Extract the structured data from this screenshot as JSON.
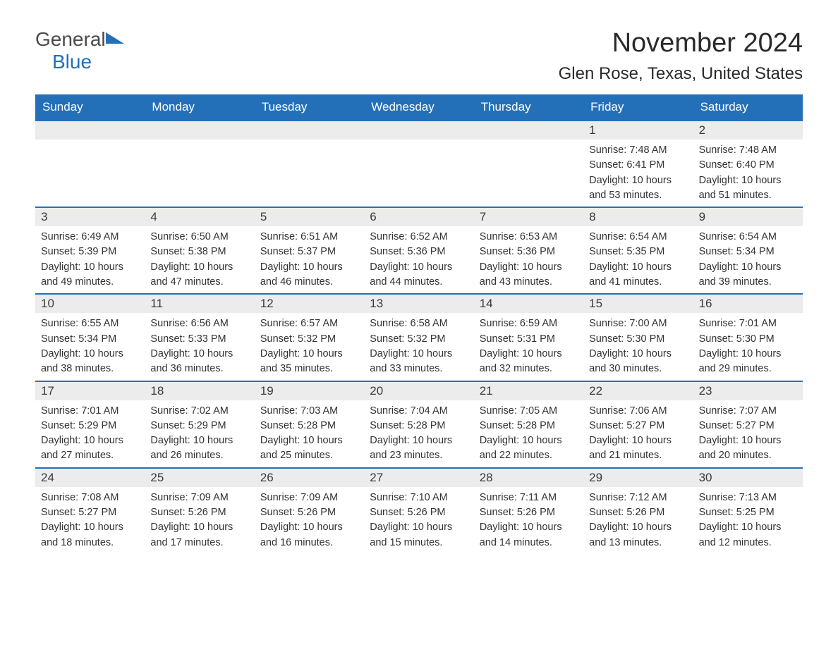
{
  "logo": {
    "text_general": "General",
    "text_blue": "Blue",
    "icon_color": "#2470b8"
  },
  "title": "November 2024",
  "location": "Glen Rose, Texas, United States",
  "colors": {
    "header_bg": "#2470b8",
    "header_text": "#ffffff",
    "day_number_bg": "#ececec",
    "text": "#333333",
    "border": "#2470b8"
  },
  "typography": {
    "title_size": 38,
    "location_size": 24,
    "header_size": 17,
    "day_number_size": 17,
    "content_size": 14.5
  },
  "day_headers": [
    "Sunday",
    "Monday",
    "Tuesday",
    "Wednesday",
    "Thursday",
    "Friday",
    "Saturday"
  ],
  "weeks": [
    [
      {
        "empty": true
      },
      {
        "empty": true
      },
      {
        "empty": true
      },
      {
        "empty": true
      },
      {
        "empty": true
      },
      {
        "day": "1",
        "sunrise": "Sunrise: 7:48 AM",
        "sunset": "Sunset: 6:41 PM",
        "daylight1": "Daylight: 10 hours",
        "daylight2": "and 53 minutes."
      },
      {
        "day": "2",
        "sunrise": "Sunrise: 7:48 AM",
        "sunset": "Sunset: 6:40 PM",
        "daylight1": "Daylight: 10 hours",
        "daylight2": "and 51 minutes."
      }
    ],
    [
      {
        "day": "3",
        "sunrise": "Sunrise: 6:49 AM",
        "sunset": "Sunset: 5:39 PM",
        "daylight1": "Daylight: 10 hours",
        "daylight2": "and 49 minutes."
      },
      {
        "day": "4",
        "sunrise": "Sunrise: 6:50 AM",
        "sunset": "Sunset: 5:38 PM",
        "daylight1": "Daylight: 10 hours",
        "daylight2": "and 47 minutes."
      },
      {
        "day": "5",
        "sunrise": "Sunrise: 6:51 AM",
        "sunset": "Sunset: 5:37 PM",
        "daylight1": "Daylight: 10 hours",
        "daylight2": "and 46 minutes."
      },
      {
        "day": "6",
        "sunrise": "Sunrise: 6:52 AM",
        "sunset": "Sunset: 5:36 PM",
        "daylight1": "Daylight: 10 hours",
        "daylight2": "and 44 minutes."
      },
      {
        "day": "7",
        "sunrise": "Sunrise: 6:53 AM",
        "sunset": "Sunset: 5:36 PM",
        "daylight1": "Daylight: 10 hours",
        "daylight2": "and 43 minutes."
      },
      {
        "day": "8",
        "sunrise": "Sunrise: 6:54 AM",
        "sunset": "Sunset: 5:35 PM",
        "daylight1": "Daylight: 10 hours",
        "daylight2": "and 41 minutes."
      },
      {
        "day": "9",
        "sunrise": "Sunrise: 6:54 AM",
        "sunset": "Sunset: 5:34 PM",
        "daylight1": "Daylight: 10 hours",
        "daylight2": "and 39 minutes."
      }
    ],
    [
      {
        "day": "10",
        "sunrise": "Sunrise: 6:55 AM",
        "sunset": "Sunset: 5:34 PM",
        "daylight1": "Daylight: 10 hours",
        "daylight2": "and 38 minutes."
      },
      {
        "day": "11",
        "sunrise": "Sunrise: 6:56 AM",
        "sunset": "Sunset: 5:33 PM",
        "daylight1": "Daylight: 10 hours",
        "daylight2": "and 36 minutes."
      },
      {
        "day": "12",
        "sunrise": "Sunrise: 6:57 AM",
        "sunset": "Sunset: 5:32 PM",
        "daylight1": "Daylight: 10 hours",
        "daylight2": "and 35 minutes."
      },
      {
        "day": "13",
        "sunrise": "Sunrise: 6:58 AM",
        "sunset": "Sunset: 5:32 PM",
        "daylight1": "Daylight: 10 hours",
        "daylight2": "and 33 minutes."
      },
      {
        "day": "14",
        "sunrise": "Sunrise: 6:59 AM",
        "sunset": "Sunset: 5:31 PM",
        "daylight1": "Daylight: 10 hours",
        "daylight2": "and 32 minutes."
      },
      {
        "day": "15",
        "sunrise": "Sunrise: 7:00 AM",
        "sunset": "Sunset: 5:30 PM",
        "daylight1": "Daylight: 10 hours",
        "daylight2": "and 30 minutes."
      },
      {
        "day": "16",
        "sunrise": "Sunrise: 7:01 AM",
        "sunset": "Sunset: 5:30 PM",
        "daylight1": "Daylight: 10 hours",
        "daylight2": "and 29 minutes."
      }
    ],
    [
      {
        "day": "17",
        "sunrise": "Sunrise: 7:01 AM",
        "sunset": "Sunset: 5:29 PM",
        "daylight1": "Daylight: 10 hours",
        "daylight2": "and 27 minutes."
      },
      {
        "day": "18",
        "sunrise": "Sunrise: 7:02 AM",
        "sunset": "Sunset: 5:29 PM",
        "daylight1": "Daylight: 10 hours",
        "daylight2": "and 26 minutes."
      },
      {
        "day": "19",
        "sunrise": "Sunrise: 7:03 AM",
        "sunset": "Sunset: 5:28 PM",
        "daylight1": "Daylight: 10 hours",
        "daylight2": "and 25 minutes."
      },
      {
        "day": "20",
        "sunrise": "Sunrise: 7:04 AM",
        "sunset": "Sunset: 5:28 PM",
        "daylight1": "Daylight: 10 hours",
        "daylight2": "and 23 minutes."
      },
      {
        "day": "21",
        "sunrise": "Sunrise: 7:05 AM",
        "sunset": "Sunset: 5:28 PM",
        "daylight1": "Daylight: 10 hours",
        "daylight2": "and 22 minutes."
      },
      {
        "day": "22",
        "sunrise": "Sunrise: 7:06 AM",
        "sunset": "Sunset: 5:27 PM",
        "daylight1": "Daylight: 10 hours",
        "daylight2": "and 21 minutes."
      },
      {
        "day": "23",
        "sunrise": "Sunrise: 7:07 AM",
        "sunset": "Sunset: 5:27 PM",
        "daylight1": "Daylight: 10 hours",
        "daylight2": "and 20 minutes."
      }
    ],
    [
      {
        "day": "24",
        "sunrise": "Sunrise: 7:08 AM",
        "sunset": "Sunset: 5:27 PM",
        "daylight1": "Daylight: 10 hours",
        "daylight2": "and 18 minutes."
      },
      {
        "day": "25",
        "sunrise": "Sunrise: 7:09 AM",
        "sunset": "Sunset: 5:26 PM",
        "daylight1": "Daylight: 10 hours",
        "daylight2": "and 17 minutes."
      },
      {
        "day": "26",
        "sunrise": "Sunrise: 7:09 AM",
        "sunset": "Sunset: 5:26 PM",
        "daylight1": "Daylight: 10 hours",
        "daylight2": "and 16 minutes."
      },
      {
        "day": "27",
        "sunrise": "Sunrise: 7:10 AM",
        "sunset": "Sunset: 5:26 PM",
        "daylight1": "Daylight: 10 hours",
        "daylight2": "and 15 minutes."
      },
      {
        "day": "28",
        "sunrise": "Sunrise: 7:11 AM",
        "sunset": "Sunset: 5:26 PM",
        "daylight1": "Daylight: 10 hours",
        "daylight2": "and 14 minutes."
      },
      {
        "day": "29",
        "sunrise": "Sunrise: 7:12 AM",
        "sunset": "Sunset: 5:26 PM",
        "daylight1": "Daylight: 10 hours",
        "daylight2": "and 13 minutes."
      },
      {
        "day": "30",
        "sunrise": "Sunrise: 7:13 AM",
        "sunset": "Sunset: 5:25 PM",
        "daylight1": "Daylight: 10 hours",
        "daylight2": "and 12 minutes."
      }
    ]
  ]
}
